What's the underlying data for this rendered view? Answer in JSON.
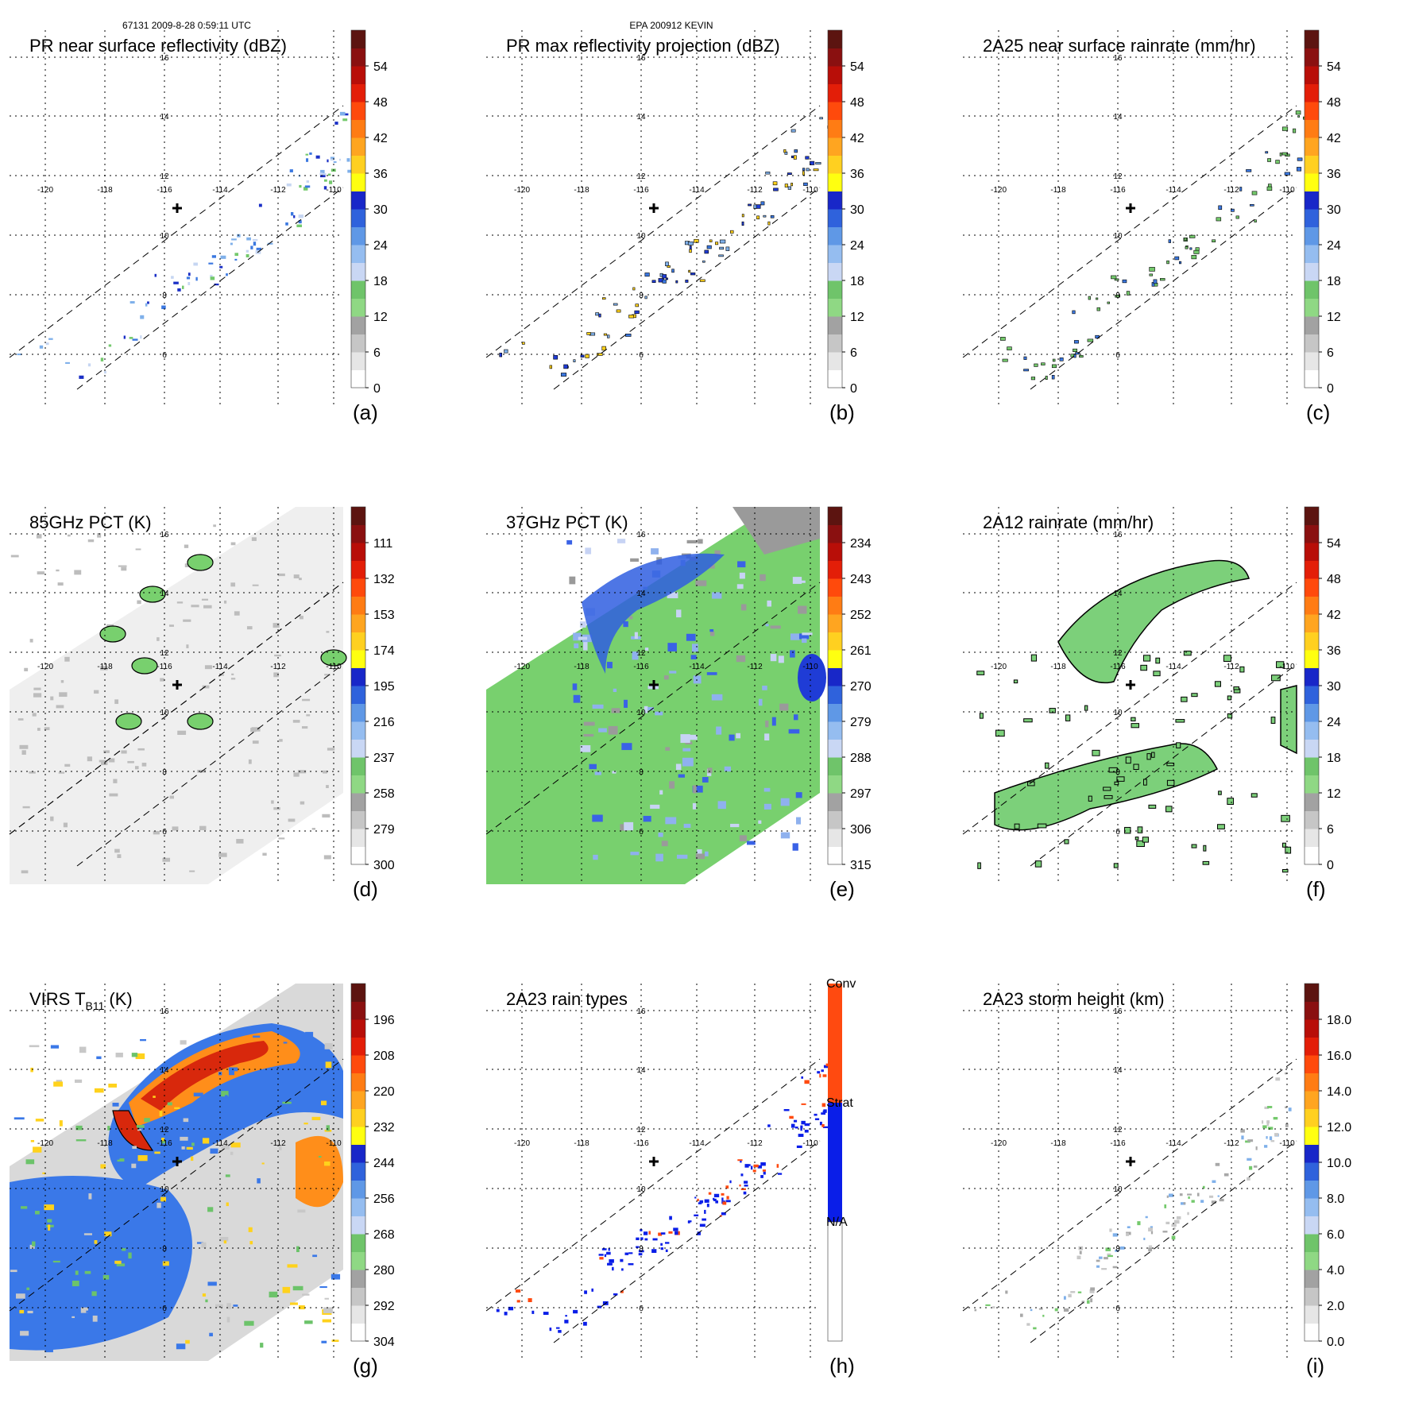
{
  "header": {
    "left": "67131 2009-8-28 0:59:11 UTC",
    "center": "EPA 200912 KEVIN"
  },
  "lat_labels": [
    "16",
    "14",
    "12",
    "10",
    "8",
    "6"
  ],
  "lon_labels": [
    "-120",
    "-118",
    "-116",
    "-114",
    "-112",
    "-110"
  ],
  "chart_data": [
    {
      "type": "heatmap",
      "panel": "(a)",
      "title": "PR near surface reflectivity (dBZ)",
      "colorbar_ticks": [
        "0",
        "6",
        "12",
        "18",
        "24",
        "30",
        "36",
        "42",
        "48",
        "54"
      ],
      "grid": true
    },
    {
      "type": "heatmap",
      "panel": "(b)",
      "title": "PR max reflectivity projection (dBZ)",
      "colorbar_ticks": [
        "0",
        "6",
        "12",
        "18",
        "24",
        "30",
        "36",
        "42",
        "48",
        "54"
      ],
      "grid": true
    },
    {
      "type": "heatmap",
      "panel": "(c)",
      "title": "2A25 near surface rainrate (mm/hr)",
      "colorbar_ticks": [
        "0",
        "6",
        "12",
        "18",
        "24",
        "30",
        "36",
        "42",
        "48",
        "54"
      ],
      "grid": true
    },
    {
      "type": "heatmap",
      "panel": "(d)",
      "title": "85GHz PCT (K)",
      "colorbar_ticks": [
        "300",
        "279",
        "258",
        "237",
        "216",
        "195",
        "174",
        "153",
        "132",
        "111"
      ],
      "grid": true
    },
    {
      "type": "heatmap",
      "panel": "(e)",
      "title": "37GHz PCT (K)",
      "colorbar_ticks": [
        "315",
        "306",
        "297",
        "288",
        "279",
        "270",
        "261",
        "252",
        "243",
        "234"
      ],
      "grid": true
    },
    {
      "type": "heatmap",
      "panel": "(f)",
      "title": "2A12 rainrate (mm/hr)",
      "colorbar_ticks": [
        "0",
        "6",
        "12",
        "18",
        "24",
        "30",
        "36",
        "42",
        "48",
        "54"
      ],
      "grid": true
    },
    {
      "type": "heatmap",
      "panel": "(g)",
      "title": "VIRS T",
      "title_sub": "B11",
      "title_unit": "(K)",
      "colorbar_ticks": [
        "304",
        "292",
        "280",
        "268",
        "256",
        "244",
        "232",
        "220",
        "208",
        "196"
      ],
      "grid": true
    },
    {
      "type": "heatmap",
      "panel": "(h)",
      "title": "2A23 rain types",
      "colorbar_ticks": [
        "N/A",
        "Strat",
        "Conv"
      ],
      "grid": true
    },
    {
      "type": "heatmap",
      "panel": "(i)",
      "title": "2A23 storm height (km)",
      "colorbar_ticks": [
        "0.0",
        "2.0",
        "4.0",
        "6.0",
        "8.0",
        "10.0",
        "12.0",
        "14.0",
        "16.0",
        "18.0"
      ],
      "grid": true
    }
  ],
  "colors": {
    "scale10": [
      "#f5f5f5",
      "#d8d8d8",
      "#a8a8a8",
      "#74c96c",
      "#c6d6f2",
      "#7fb0ea",
      "#3b78e0",
      "#1a2fc6",
      "#ffff00",
      "#ffd21c",
      "#ffb020",
      "#ff8a14",
      "#ff5a0c",
      "#ee2a08",
      "#c2140a",
      "#8e1010",
      "#5a1410"
    ],
    "green_fill": "#7cd07a",
    "blue_fill": "#1f3cd6",
    "strat": "#0a1ee8",
    "conv": "#ff4a10",
    "swath_grey": "#efefef",
    "pct37_green": "#78d06e",
    "pct37_grey": "#9a9a9a",
    "pct37_blue": "#3a62e6",
    "virs_red": "#d8280c",
    "virs_orange": "#ff8e1a",
    "virs_blue": "#3a78e8",
    "virs_green": "#6cc36a",
    "virs_grey": "#c8c8c8"
  }
}
